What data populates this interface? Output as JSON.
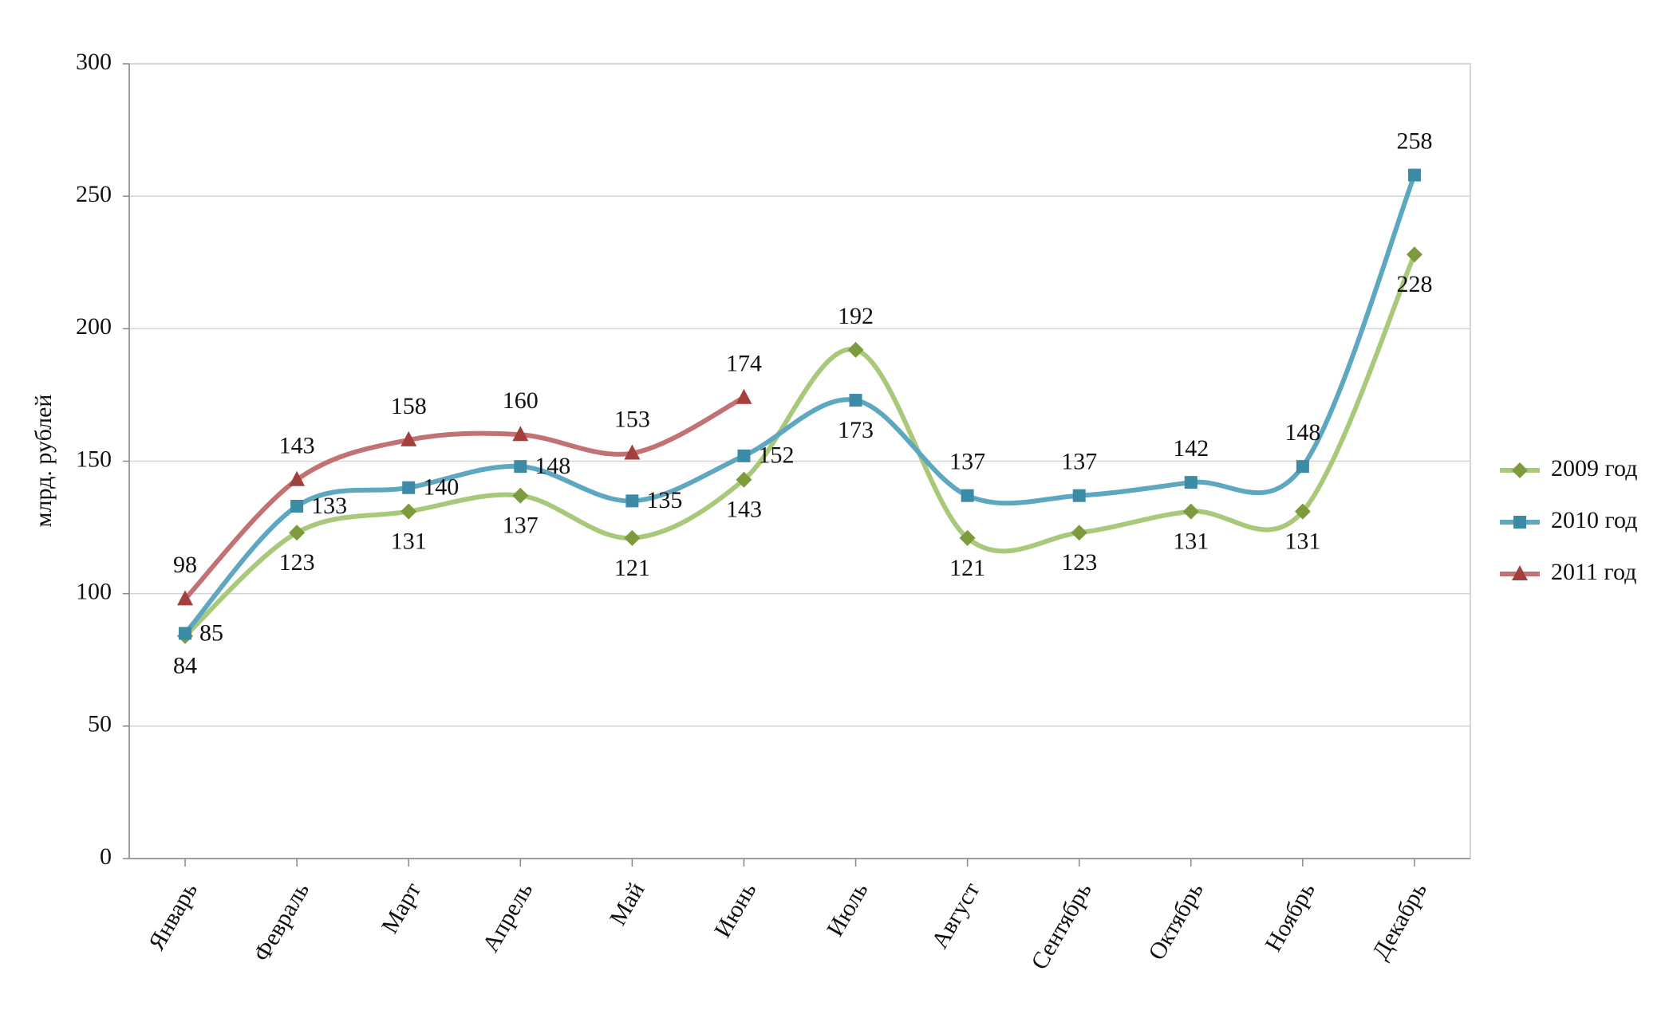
{
  "chart_data": {
    "type": "line",
    "y_label": "млрд. рублей",
    "categories": [
      "Январь",
      "Февраль",
      "Март",
      "Апрель",
      "Май",
      "Июнь",
      "Июль",
      "Август",
      "Сентябрь",
      "Октябрь",
      "Ноябрь",
      "Декабрь"
    ],
    "series": [
      {
        "name": "2009 год",
        "color": "#a9c97a",
        "marker_color": "#7b9b3c",
        "label_color": "#1f4a1f",
        "marker": "diamond",
        "values": [
          84,
          123,
          131,
          137,
          121,
          143,
          192,
          121,
          123,
          131,
          131,
          228
        ]
      },
      {
        "name": "2010 год",
        "color": "#5ea7c0",
        "marker_color": "#3b8aa6",
        "label_color": "#1c1c8a",
        "marker": "square",
        "values": [
          85,
          133,
          140,
          148,
          135,
          152,
          173,
          137,
          137,
          142,
          148,
          258
        ]
      },
      {
        "name": "2011 год",
        "color": "#c27272",
        "marker_color": "#a3403e",
        "label_color": "#8b1a1a",
        "marker": "triangle",
        "values": [
          98,
          143,
          158,
          160,
          153,
          174,
          null,
          null,
          null,
          null,
          null,
          null
        ]
      }
    ],
    "ylim": [
      0,
      300
    ],
    "yticks": [
      0,
      50,
      100,
      150,
      200,
      250,
      300
    ],
    "grid": true,
    "smooth": true,
    "legend": "right"
  }
}
